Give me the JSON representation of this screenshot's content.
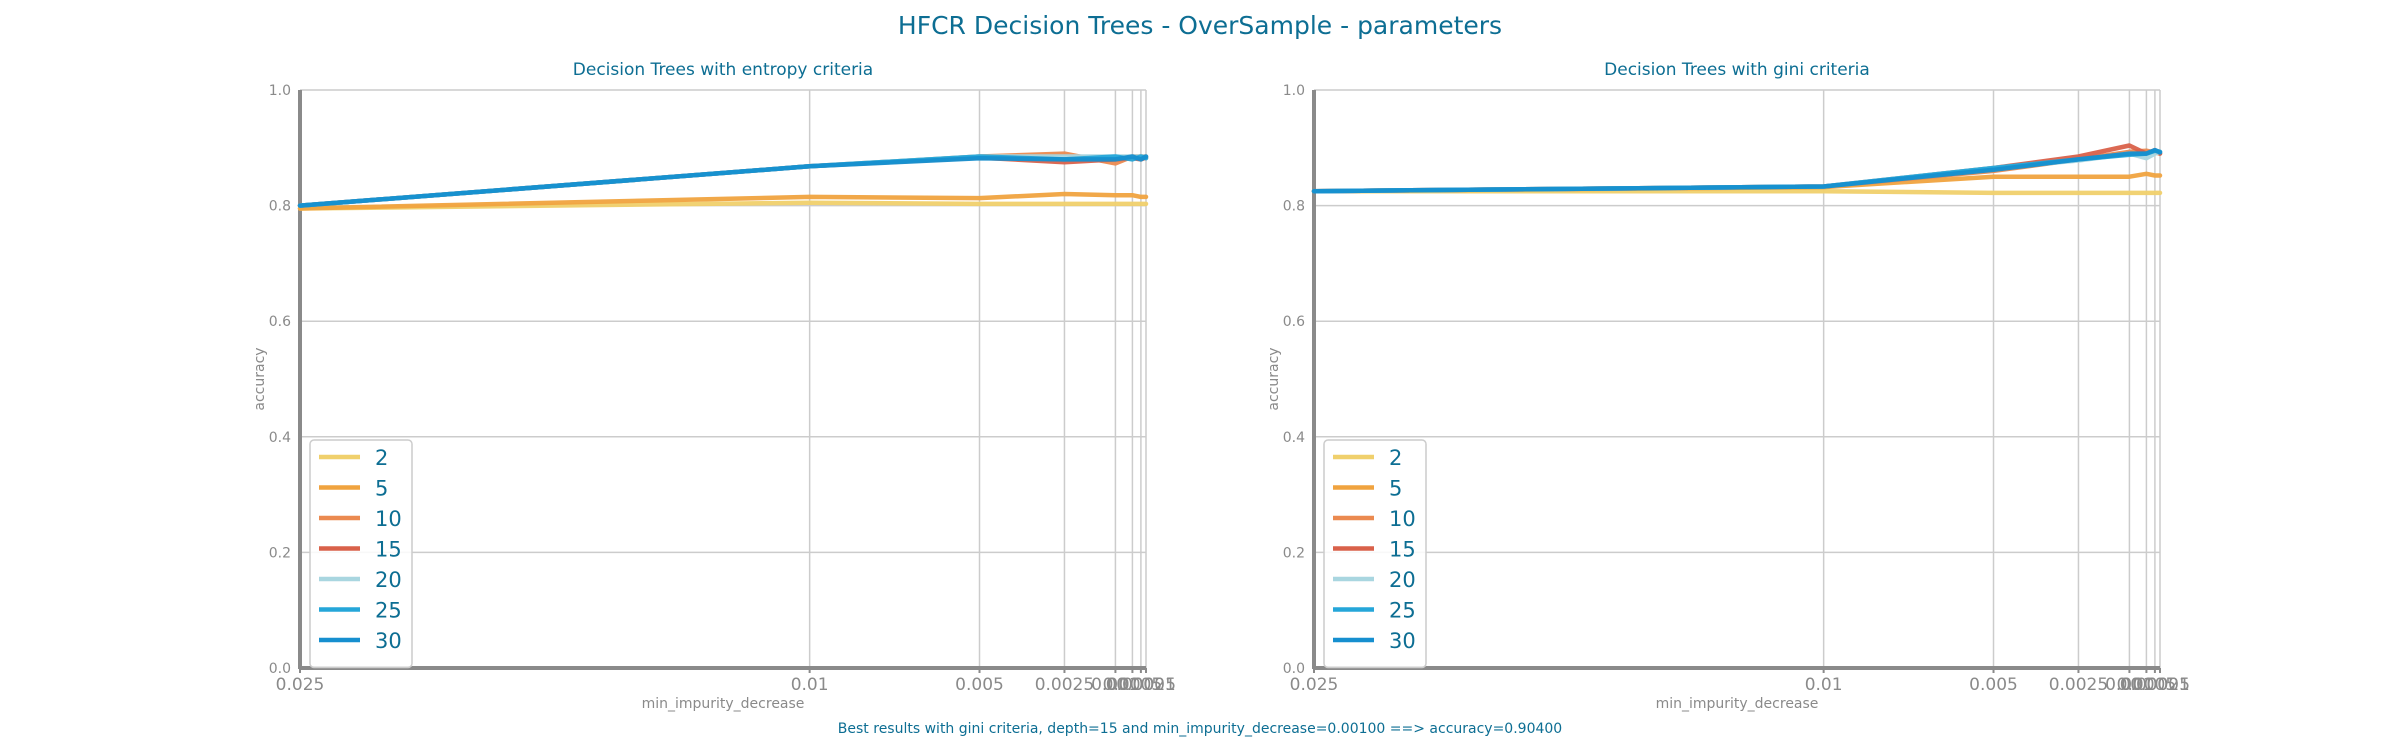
{
  "figure": {
    "title": "HFCR Decision Trees - OverSample - parameters",
    "footnote": "Best results with gini criteria, depth=15 and min_impurity_decrease=0.00100 ==> accuracy=0.90400"
  },
  "colors": {
    "text": "#0d6e93",
    "tick": "#8a8a8a",
    "grid": "#cccccc",
    "axis": "#8a8a8a",
    "series": [
      "#f0d06c",
      "#f0a33f",
      "#eb8a50",
      "#d9614a",
      "#a9d6e0",
      "#25a6d9",
      "#168fcf"
    ]
  },
  "chart_data": [
    {
      "type": "line",
      "title": "Decision Trees with entropy criteria",
      "xlabel": "min_impurity_decrease",
      "ylabel": "accuracy",
      "ylim": [
        0,
        1
      ],
      "yticks": [
        "0.0",
        "0.2",
        "0.4",
        "0.6",
        "0.8",
        "1.0"
      ],
      "x": [
        0.025,
        0.01,
        0.005,
        0.0025,
        0.001,
        0.0005,
        0.00025,
        0.0001
      ],
      "xtick_labels": [
        "0.025",
        "0.01",
        "0.005",
        "0.0025",
        "0.001",
        "0.0005",
        "0.00025",
        "0.0001"
      ],
      "grid": true,
      "legend_position": "lower-left",
      "series": [
        {
          "name": "2",
          "values": [
            0.795,
            0.805,
            0.803,
            0.803,
            0.803,
            0.803,
            0.803,
            0.803
          ]
        },
        {
          "name": "5",
          "values": [
            0.795,
            0.815,
            0.813,
            0.82,
            0.818,
            0.818,
            0.815,
            0.815
          ]
        },
        {
          "name": "10",
          "values": [
            0.8,
            0.868,
            0.885,
            0.89,
            0.873,
            0.885,
            0.885,
            0.885
          ]
        },
        {
          "name": "15",
          "values": [
            0.8,
            0.868,
            0.883,
            0.875,
            0.88,
            0.882,
            0.88,
            0.883
          ]
        },
        {
          "name": "20",
          "values": [
            0.8,
            0.868,
            0.885,
            0.885,
            0.885,
            0.885,
            0.885,
            0.885
          ]
        },
        {
          "name": "25",
          "values": [
            0.8,
            0.868,
            0.885,
            0.88,
            0.885,
            0.88,
            0.885,
            0.882
          ]
        },
        {
          "name": "30",
          "values": [
            0.8,
            0.868,
            0.882,
            0.88,
            0.88,
            0.885,
            0.88,
            0.885
          ]
        }
      ]
    },
    {
      "type": "line",
      "title": "Decision Trees with gini criteria",
      "xlabel": "min_impurity_decrease",
      "ylabel": "accuracy",
      "ylim": [
        0,
        1
      ],
      "yticks": [
        "0.0",
        "0.2",
        "0.4",
        "0.6",
        "0.8",
        "1.0"
      ],
      "x": [
        0.025,
        0.01,
        0.005,
        0.0025,
        0.001,
        0.0005,
        0.00025,
        0.0001
      ],
      "xtick_labels": [
        "0.025",
        "0.01",
        "0.005",
        "0.0025",
        "0.001",
        "0.0005",
        "0.00025",
        "0.0001"
      ],
      "grid": true,
      "legend_position": "lower-left",
      "series": [
        {
          "name": "2",
          "values": [
            0.825,
            0.825,
            0.822,
            0.822,
            0.822,
            0.822,
            0.822,
            0.822
          ]
        },
        {
          "name": "5",
          "values": [
            0.825,
            0.832,
            0.85,
            0.85,
            0.85,
            0.855,
            0.852,
            0.852
          ]
        },
        {
          "name": "10",
          "values": [
            0.825,
            0.833,
            0.86,
            0.88,
            0.893,
            0.895,
            0.892,
            0.89
          ]
        },
        {
          "name": "15",
          "values": [
            0.825,
            0.833,
            0.865,
            0.885,
            0.904,
            0.89,
            0.896,
            0.89
          ]
        },
        {
          "name": "20",
          "values": [
            0.825,
            0.833,
            0.865,
            0.878,
            0.89,
            0.882,
            0.89,
            0.893
          ]
        },
        {
          "name": "25",
          "values": [
            0.825,
            0.833,
            0.865,
            0.88,
            0.888,
            0.89,
            0.895,
            0.893
          ]
        },
        {
          "name": "30",
          "values": [
            0.825,
            0.833,
            0.862,
            0.88,
            0.89,
            0.89,
            0.896,
            0.892
          ]
        }
      ]
    }
  ]
}
